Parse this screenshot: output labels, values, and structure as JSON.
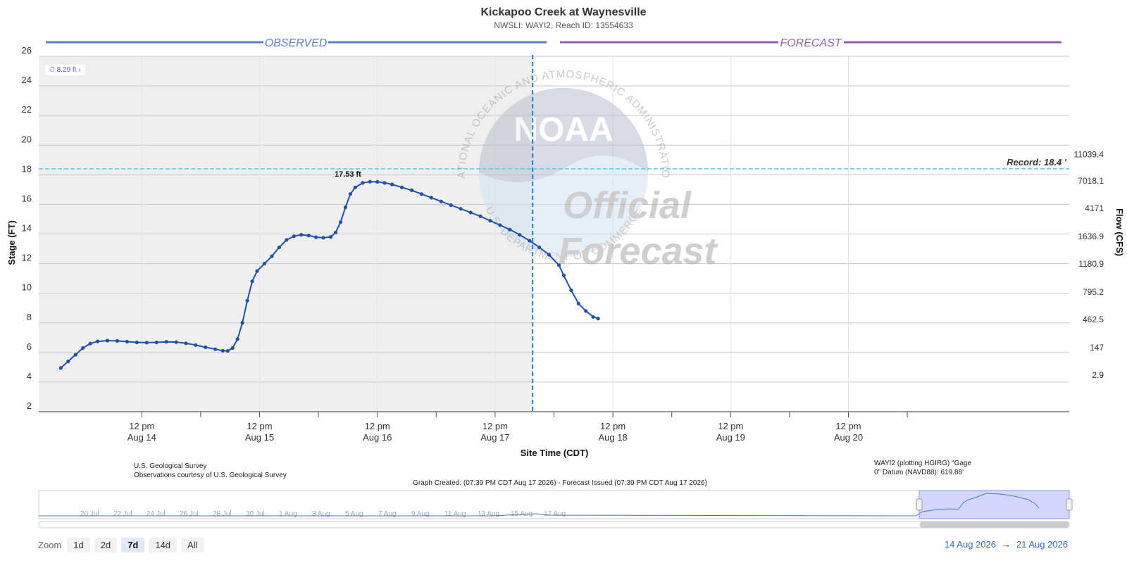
{
  "title": "Kickapoo Creek at Waynesville",
  "subtitle": "NWSLI: WAYI2, Reach ID: 13554633",
  "bands": {
    "observed": "OBSERVED",
    "forecast": "FORECAST"
  },
  "colors": {
    "observed_band": "#5b7fc7",
    "forecast_band": "#9060b0",
    "series": "#2050a8",
    "record_line": "#5bc8ee",
    "now_line": "#1a7ad6",
    "observed_bg": "#efefef"
  },
  "stage_chip": "8.29 ft",
  "chip_icon": "stopwatch-icon",
  "record_label": "Record: 18.4 '",
  "peak_label": "17.53 ft",
  "watermark": {
    "top_arc": "NATIONAL OCEANIC AND ATMOSPHERIC ADMINISTRATION",
    "bottom_arc": "U.S. DEPARTMENT OF COMMERCE",
    "logo": "NOAA",
    "line1": "Official",
    "line2": "Forecast"
  },
  "credits": {
    "left1": "U.S. Geological Survey",
    "left2": "Observations courtesy of U.S. Geological Survey",
    "right1": "WAYI2 (plotting HGIRG) \"Gage",
    "right2": "0\" Datum (NAVD88): 619.88'",
    "center": "Graph Created: (07:39 PM CDT Aug 17 2026) - Forecast Issued (07:39 PM CDT Aug 17 2026)"
  },
  "navigator_labels": [
    "20 Jul",
    "22 Jul",
    "24 Jul",
    "26 Jul",
    "28 Jul",
    "30 Jul",
    "1 Aug",
    "3 Aug",
    "5 Aug",
    "7 Aug",
    "9 Aug",
    "11 Aug",
    "13 Aug",
    "15 Aug",
    "17 Aug"
  ],
  "zoom": {
    "label": "Zoom",
    "buttons": [
      "1d",
      "2d",
      "7d",
      "14d",
      "All"
    ],
    "active": "7d"
  },
  "range": {
    "from": "14 Aug 2026",
    "arrow": "→",
    "to": "21 Aug 2026"
  },
  "chart_data": {
    "type": "line",
    "title": "Kickapoo Creek at Waynesville",
    "subtitle": "NWSLI: WAYI2, Reach ID: 13554633",
    "xlabel": "Site Time (CDT)",
    "ylabel": "Stage (FT)",
    "y2label": "Flow (CFS)",
    "ylim": [
      2,
      26
    ],
    "yticks": [
      2,
      4,
      6,
      8,
      10,
      12,
      14,
      16,
      18,
      20,
      22,
      24,
      26
    ],
    "xlim_hours": [
      -9,
      201
    ],
    "x_ticks": [
      {
        "h": 12,
        "time": "12 pm",
        "date": "Aug 14"
      },
      {
        "h": 36,
        "time": "12 pm",
        "date": "Aug 15"
      },
      {
        "h": 60,
        "time": "12 pm",
        "date": "Aug 16"
      },
      {
        "h": 84,
        "time": "12 pm",
        "date": "Aug 17"
      },
      {
        "h": 108,
        "time": "12 pm",
        "date": "Aug 18"
      },
      {
        "h": 132,
        "time": "12 pm",
        "date": "Aug 19"
      },
      {
        "h": 156,
        "time": "12 pm",
        "date": "Aug 20"
      }
    ],
    "minor_ticks_hours": [
      24,
      48,
      72,
      96,
      120,
      144,
      168
    ],
    "forecast_start_hours": 91.65,
    "flow_ticks": [
      {
        "stage": 4.1,
        "flow": "2.9"
      },
      {
        "stage": 5.95,
        "flow": "147"
      },
      {
        "stage": 7.85,
        "flow": "462.5"
      },
      {
        "stage": 9.7,
        "flow": "795.2"
      },
      {
        "stage": 11.6,
        "flow": "1180.9"
      },
      {
        "stage": 13.45,
        "flow": "1636.9"
      },
      {
        "stage": 15.35,
        "flow": "4171"
      },
      {
        "stage": 17.2,
        "flow": "7018.1"
      },
      {
        "stage": 19.0,
        "flow": "11039.4"
      }
    ],
    "record_stage": 18.4,
    "peak": {
      "h": 54,
      "stage": 17.53
    },
    "series": [
      {
        "name": "Observed Stage",
        "points": [
          [
            -4.5,
            4.95
          ],
          [
            -3,
            5.4
          ],
          [
            -1.5,
            5.85
          ],
          [
            0,
            6.3
          ],
          [
            1.5,
            6.6
          ],
          [
            3,
            6.75
          ],
          [
            5,
            6.8
          ],
          [
            7,
            6.78
          ],
          [
            9,
            6.73
          ],
          [
            11,
            6.68
          ],
          [
            13,
            6.66
          ],
          [
            15,
            6.68
          ],
          [
            17,
            6.72
          ],
          [
            19,
            6.7
          ],
          [
            21,
            6.62
          ],
          [
            23,
            6.5
          ],
          [
            25,
            6.35
          ],
          [
            27,
            6.22
          ],
          [
            28.5,
            6.12
          ],
          [
            29.5,
            6.1
          ],
          [
            30.5,
            6.3
          ],
          [
            31.5,
            6.9
          ],
          [
            32.5,
            8.0
          ],
          [
            33.5,
            9.5
          ],
          [
            34.5,
            10.8
          ],
          [
            35.5,
            11.5
          ],
          [
            37,
            12.0
          ],
          [
            38.5,
            12.5
          ],
          [
            40,
            13.1
          ],
          [
            41.5,
            13.6
          ],
          [
            43,
            13.85
          ],
          [
            44.5,
            13.95
          ],
          [
            46,
            13.9
          ],
          [
            47.5,
            13.78
          ],
          [
            49,
            13.75
          ],
          [
            50.5,
            13.8
          ],
          [
            51.5,
            14.1
          ],
          [
            52.5,
            14.8
          ],
          [
            53.5,
            15.8
          ],
          [
            54.5,
            16.7
          ],
          [
            55.5,
            17.15
          ],
          [
            57,
            17.45
          ],
          [
            58.5,
            17.53
          ],
          [
            60,
            17.52
          ],
          [
            61.5,
            17.45
          ],
          [
            63,
            17.35
          ],
          [
            65,
            17.15
          ],
          [
            67,
            16.95
          ],
          [
            69,
            16.7
          ],
          [
            71,
            16.45
          ],
          [
            73,
            16.2
          ],
          [
            75,
            15.95
          ],
          [
            77,
            15.7
          ],
          [
            79,
            15.45
          ],
          [
            81,
            15.2
          ],
          [
            83,
            14.9
          ],
          [
            85,
            14.6
          ],
          [
            87,
            14.3
          ],
          [
            89,
            13.95
          ],
          [
            91,
            13.55
          ],
          [
            93,
            13.1
          ],
          [
            95,
            12.6
          ],
          [
            97,
            11.9
          ],
          [
            98,
            11.2
          ],
          [
            99.5,
            10.2
          ],
          [
            101,
            9.3
          ],
          [
            102.5,
            8.8
          ],
          [
            104,
            8.4
          ],
          [
            105,
            8.29
          ]
        ]
      }
    ]
  }
}
